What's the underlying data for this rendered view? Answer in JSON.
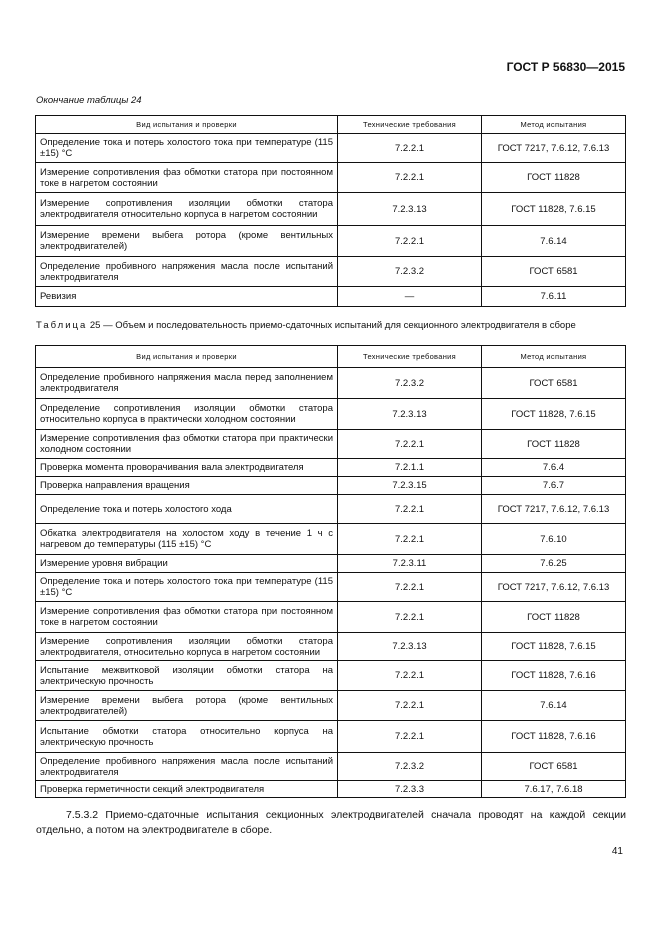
{
  "header": {
    "doc_id": "ГОСТ Р 56830—2015"
  },
  "table24": {
    "continuation": "Окончание таблицы 24",
    "columns": [
      "Вид испытания и проверки",
      "Технические требования",
      "Метод испытания"
    ],
    "rows": [
      {
        "test": "Определение тока и потерь холостого тока при температуре (115 ±15) °С",
        "req": "7.2.2.1",
        "method": "ГОСТ 7217, 7.6.12, 7.6.13"
      },
      {
        "test": "Измерение сопротивления фаз обмотки статора при постоянном токе в нагретом состоянии",
        "req": "7.2.2.1",
        "method": "ГОСТ 11828"
      },
      {
        "test": "Измерение сопротивления изоляции обмотки статора электродвигателя относительно корпуса в нагретом состоянии",
        "req": "7.2.3.13",
        "method": "ГОСТ 11828, 7.6.15"
      },
      {
        "test": "Измерение времени выбега ротора (кроме вентильных электродвигателей)",
        "req": "7.2.2.1",
        "method": "7.6.14"
      },
      {
        "test": "Определение пробивного напряжения масла после испытаний электродвигателя",
        "req": "7.2.3.2",
        "method": "ГОСТ 6581"
      },
      {
        "test": "Ревизия",
        "req": "—",
        "method": "7.6.11"
      }
    ]
  },
  "table25": {
    "caption_label": "Таблица",
    "caption_text": "25 — Объем и последовательность приемо-сдаточных испытаний для секционного электродвигателя в сборе",
    "columns": [
      "Вид испытания и проверки",
      "Технические требования",
      "Метод испытания"
    ],
    "rows": [
      {
        "test": "Определение пробивного напряжения масла перед заполнением электродвигателя",
        "req": "7.2.3.2",
        "method": "ГОСТ 6581"
      },
      {
        "test": "Определение сопротивления изоляции обмотки статора относительно корпуса в практически холодном состоянии",
        "req": "7.2.3.13",
        "method": "ГОСТ 11828, 7.6.15"
      },
      {
        "test": "Измерение сопротивления фаз обмотки статора при практически холодном состоянии",
        "req": "7.2.2.1",
        "method": "ГОСТ 11828"
      },
      {
        "test": "Проверка момента проворачивания вала электродвигателя",
        "req": "7.2.1.1",
        "method": "7.6.4"
      },
      {
        "test": "Проверка направления вращения",
        "req": "7.2.3.15",
        "method": "7.6.7"
      },
      {
        "test": "Определение тока и потерь холостого хода",
        "req": "7.2.2.1",
        "method": "ГОСТ 7217, 7.6.12, 7.6.13"
      },
      {
        "test": "Обкатка электродвигателя на холостом ходу в течение 1 ч с нагревом до температуры (115 ±15) °С",
        "req": "7.2.2.1",
        "method": "7.6.10"
      },
      {
        "test": "Измерение уровня вибрации",
        "req": "7.2.3.11",
        "method": "7.6.25"
      },
      {
        "test": "Определение тока и потерь холостого тока при температуре (115 ±15) °С",
        "req": "7.2.2.1",
        "method": "ГОСТ 7217, 7.6.12, 7.6.13"
      },
      {
        "test": "Измерение сопротивления фаз обмотки статора при постоянном токе в нагретом состоянии",
        "req": "7.2.2.1",
        "method": "ГОСТ 11828"
      },
      {
        "test": "Измерение сопротивления изоляции обмотки статора электродвигателя, относительно корпуса в нагретом состоянии",
        "req": "7.2.3.13",
        "method": "ГОСТ 11828, 7.6.15"
      },
      {
        "test": "Испытание межвитковой изоляции обмотки статора на электрическую прочность",
        "req": "7.2.2.1",
        "method": "ГОСТ 11828, 7.6.16"
      },
      {
        "test": "Измерение времени выбега ротора (кроме вентильных электродвигателей)",
        "req": "7.2.2.1",
        "method": "7.6.14"
      },
      {
        "test": "Испытание обмотки статора относительно корпуса на электрическую прочность",
        "req": "7.2.2.1",
        "method": "ГОСТ 11828, 7.6.16"
      },
      {
        "test": "Определение пробивного напряжения масла после испытаний электродвигателя",
        "req": "7.2.3.2",
        "method": "ГОСТ 6581"
      },
      {
        "test": "Проверка герметичности секций электродвигателя",
        "req": "7.2.3.3",
        "method": "7.6.17, 7.6.18"
      }
    ]
  },
  "paragraph": "7.5.3.2 Приемо-сдаточные испытания секционных электродвигателей сначала проводят на каждой секции отдельно, а потом на электродвигателе в сборе.",
  "page_number": "41"
}
